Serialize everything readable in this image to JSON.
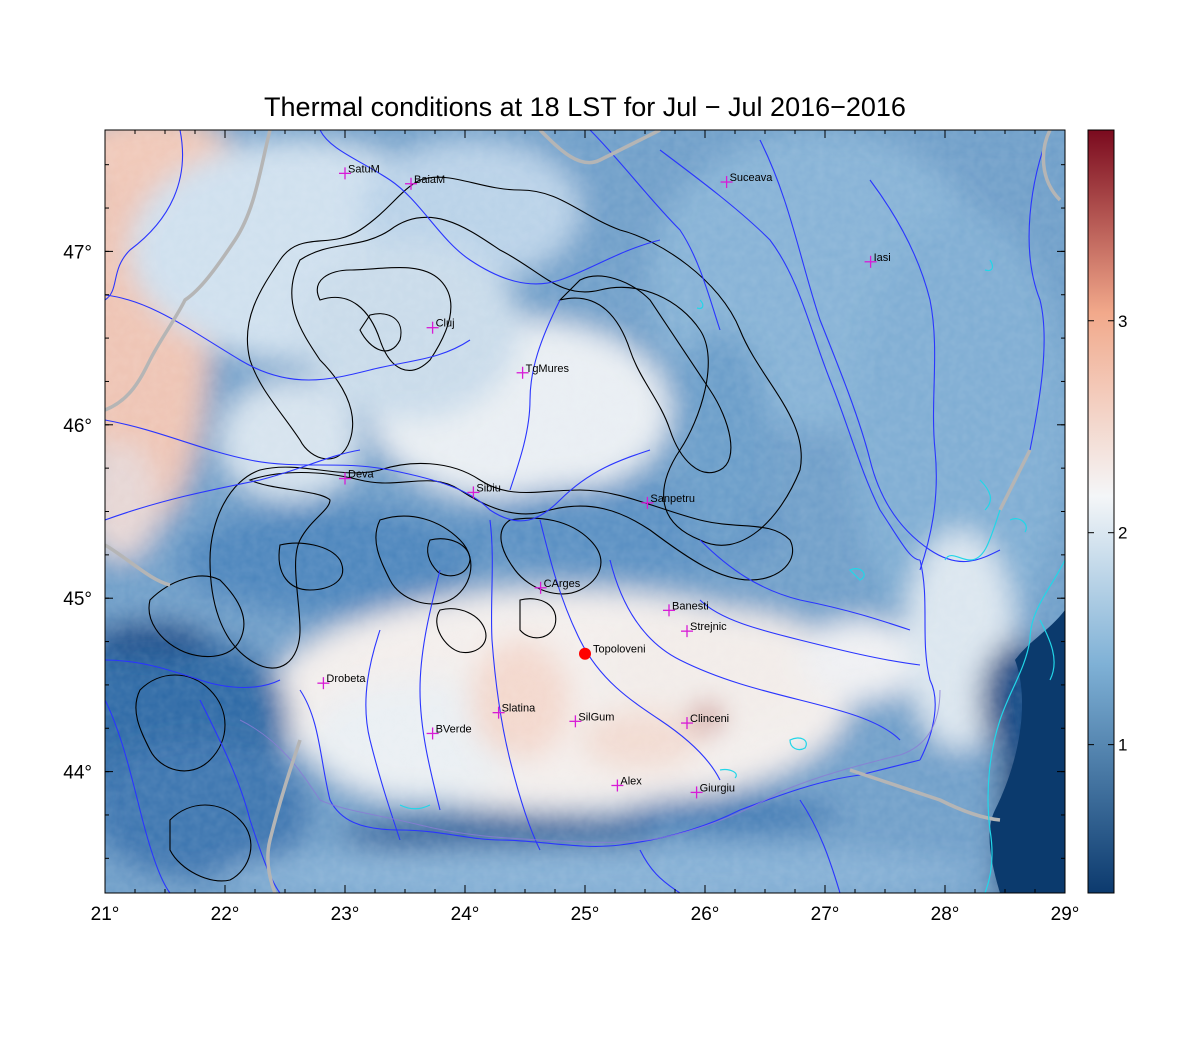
{
  "title": "Thermal conditions at 18 LST for Jul − Jul  2016−2016",
  "colors": {
    "high": "#7a0a1e",
    "mid_warm": "#f2a98b",
    "neutral": "#f4f6f8",
    "mid_cool": "#7fb1d6",
    "low": "#0c3a6e",
    "rivers": "#2a35ff",
    "contours": "#000000",
    "borders": "#b5b5b5",
    "coast": "#22d6e8",
    "city_marker": "#d81bd6",
    "highlight_point": "#ff0000"
  },
  "map": {
    "lon_range": [
      21,
      29
    ],
    "lat_range": [
      43.3,
      47.7
    ],
    "x_ticks": [
      "21°",
      "22°",
      "23°",
      "24°",
      "25°",
      "26°",
      "27°",
      "28°",
      "29°"
    ],
    "x_tick_values": [
      21,
      22,
      23,
      24,
      25,
      26,
      27,
      28,
      29
    ],
    "y_ticks": [
      "44°",
      "45°",
      "46°",
      "47°"
    ],
    "y_tick_values": [
      44,
      45,
      46,
      47
    ]
  },
  "colorbar": {
    "ticks": [
      "1",
      "2",
      "3"
    ],
    "tick_values": [
      1,
      2,
      3
    ],
    "range": [
      0.3,
      3.9
    ]
  },
  "cities": [
    {
      "name": "SatuM",
      "lon": 23.0,
      "lat": 47.45
    },
    {
      "name": "BaiaM",
      "lon": 23.55,
      "lat": 47.39
    },
    {
      "name": "Suceava",
      "lon": 26.18,
      "lat": 47.4
    },
    {
      "name": "Iasi",
      "lon": 27.38,
      "lat": 46.94
    },
    {
      "name": "Cluj",
      "lon": 23.73,
      "lat": 46.56
    },
    {
      "name": "TgMures",
      "lon": 24.48,
      "lat": 46.3
    },
    {
      "name": "Deva",
      "lon": 23.0,
      "lat": 45.69
    },
    {
      "name": "Sibiu",
      "lon": 24.07,
      "lat": 45.61
    },
    {
      "name": "Sanpetru",
      "lon": 25.52,
      "lat": 45.55
    },
    {
      "name": "CArges",
      "lon": 24.63,
      "lat": 45.06
    },
    {
      "name": "Banesti",
      "lon": 25.7,
      "lat": 44.93
    },
    {
      "name": "Strejnic",
      "lon": 25.85,
      "lat": 44.81
    },
    {
      "name": "Drobeta",
      "lon": 22.82,
      "lat": 44.51
    },
    {
      "name": "Slatina",
      "lon": 24.28,
      "lat": 44.34
    },
    {
      "name": "SilGum",
      "lon": 24.92,
      "lat": 44.29
    },
    {
      "name": "Clinceni",
      "lon": 25.85,
      "lat": 44.28
    },
    {
      "name": "BVerde",
      "lon": 23.73,
      "lat": 44.22
    },
    {
      "name": "Alex",
      "lon": 25.27,
      "lat": 43.92
    },
    {
      "name": "Giurgiu",
      "lon": 25.93,
      "lat": 43.88
    }
  ],
  "highlight": {
    "name": "Topoloveni",
    "lon": 25.0,
    "lat": 44.68
  }
}
